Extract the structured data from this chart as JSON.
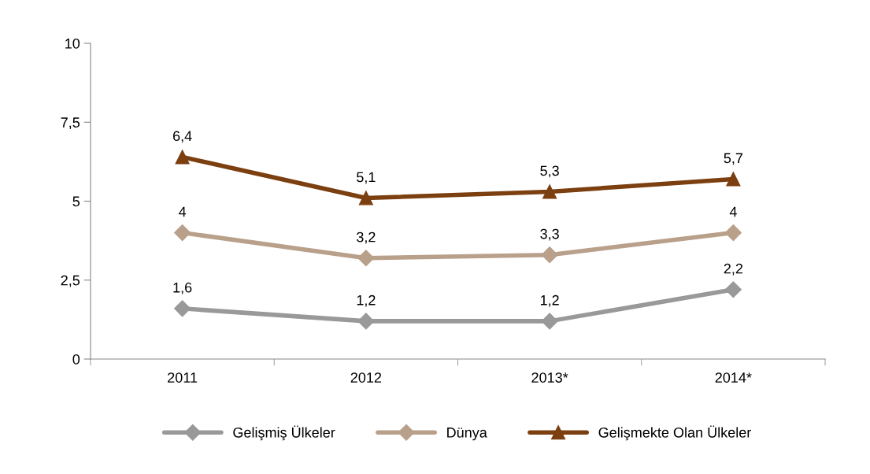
{
  "chart_data": {
    "type": "line",
    "categories": [
      "2011",
      "2012",
      "2013*",
      "2014*"
    ],
    "series": [
      {
        "name": "Gelişmiş Ülkeler",
        "color": "#999999",
        "marker": "diamond",
        "values": [
          1.6,
          1.2,
          1.2,
          2.2
        ],
        "value_labels": [
          "1,6",
          "1,2",
          "1,2",
          "2,2"
        ]
      },
      {
        "name": "Dünya",
        "color": "#b9a08a",
        "marker": "diamond",
        "values": [
          4,
          3.2,
          3.3,
          4
        ],
        "value_labels": [
          "4",
          "3,2",
          "3,3",
          "4"
        ]
      },
      {
        "name": "Gelişmekte Olan Ülkeler",
        "color": "#7b3f10",
        "marker": "triangle",
        "values": [
          6.4,
          5.1,
          5.3,
          5.7
        ],
        "value_labels": [
          "6,4",
          "5,1",
          "5,3",
          "5,7"
        ]
      }
    ],
    "ylim": [
      0,
      10
    ],
    "yticks": [
      0,
      {
        "value": 2.5,
        "label": "2,5"
      },
      5,
      {
        "value": 7.5,
        "label": "7,5"
      },
      10
    ],
    "grid": false,
    "legend": "bottom"
  }
}
